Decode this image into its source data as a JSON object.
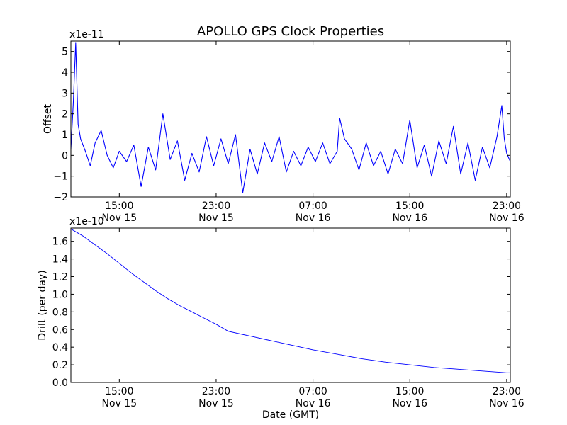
{
  "figure": {
    "title": "APOLLO GPS Clock Properties",
    "xlabel": "Date (GMT)"
  },
  "chart_data": [
    {
      "type": "line",
      "name": "offset",
      "title": "APOLLO GPS Clock Properties",
      "ylabel": "Offset",
      "scale_label": "x1e-11",
      "xlabel": "",
      "x_unit": "hours since Nov 15 11:00 GMT",
      "xlim": [
        0,
        36.3
      ],
      "ylim": [
        -2,
        5.5
      ],
      "yticks": [
        -2,
        -1,
        0,
        1,
        2,
        3,
        4,
        5
      ],
      "xticks": [
        {
          "x": 4,
          "time": "15:00",
          "date": "Nov 15"
        },
        {
          "x": 12,
          "time": "23:00",
          "date": "Nov 15"
        },
        {
          "x": 20,
          "time": "07:00",
          "date": "Nov 16"
        },
        {
          "x": 28,
          "time": "15:00",
          "date": "Nov 16"
        },
        {
          "x": 36,
          "time": "23:00",
          "date": "Nov 16"
        }
      ],
      "color": "#0000ff",
      "grid": false,
      "series": [
        {
          "name": "Offset",
          "x": [
            0,
            0.2,
            0.4,
            0.6,
            0.8,
            1.2,
            1.6,
            2.0,
            2.5,
            3.0,
            3.5,
            4.0,
            4.6,
            5.2,
            5.8,
            6.4,
            7.0,
            7.6,
            8.2,
            8.8,
            9.4,
            10.0,
            10.6,
            11.2,
            11.8,
            12.4,
            13.0,
            13.6,
            14.2,
            14.8,
            15.4,
            16.0,
            16.6,
            17.2,
            17.8,
            18.4,
            19.0,
            19.6,
            20.2,
            20.8,
            21.4,
            22.0,
            22.2,
            22.6,
            23.2,
            23.8,
            24.4,
            25.0,
            25.6,
            26.2,
            26.8,
            27.4,
            28.0,
            28.6,
            29.2,
            29.8,
            30.4,
            31.0,
            31.6,
            32.2,
            32.8,
            33.4,
            34.0,
            34.6,
            35.2,
            35.6,
            35.8,
            36.0,
            36.3
          ],
          "y": [
            0.3,
            2.5,
            5.4,
            1.5,
            0.8,
            0.2,
            -0.5,
            0.6,
            1.2,
            0.0,
            -0.6,
            0.2,
            -0.3,
            0.5,
            -1.5,
            0.4,
            -0.7,
            2.0,
            -0.2,
            0.7,
            -1.2,
            0.1,
            -0.8,
            0.9,
            -0.5,
            0.8,
            -0.4,
            1.0,
            -1.8,
            0.3,
            -0.9,
            0.6,
            -0.3,
            0.9,
            -0.8,
            0.2,
            -0.5,
            0.4,
            -0.3,
            0.6,
            -0.4,
            0.2,
            1.8,
            0.8,
            0.3,
            -0.7,
            0.6,
            -0.5,
            0.2,
            -0.9,
            0.3,
            -0.4,
            1.7,
            -0.6,
            0.5,
            -1.0,
            0.7,
            -0.4,
            1.4,
            -0.9,
            0.6,
            -1.2,
            0.4,
            -0.6,
            0.9,
            2.4,
            0.8,
            0.1,
            -0.3
          ]
        }
      ]
    },
    {
      "type": "line",
      "name": "drift",
      "title": "",
      "ylabel": "Drift (per day)",
      "scale_label": "x1e-10",
      "xlabel": "Date (GMT)",
      "x_unit": "hours since Nov 15 11:00 GMT",
      "xlim": [
        0,
        36.3
      ],
      "ylim": [
        0.0,
        1.75
      ],
      "yticks": [
        0.0,
        0.2,
        0.4,
        0.6,
        0.8,
        1.0,
        1.2,
        1.4,
        1.6
      ],
      "xticks": [
        {
          "x": 4,
          "time": "15:00",
          "date": "Nov 15"
        },
        {
          "x": 12,
          "time": "23:00",
          "date": "Nov 15"
        },
        {
          "x": 20,
          "time": "07:00",
          "date": "Nov 16"
        },
        {
          "x": 28,
          "time": "15:00",
          "date": "Nov 16"
        },
        {
          "x": 36,
          "time": "23:00",
          "date": "Nov 16"
        }
      ],
      "color": "#0000ff",
      "grid": false,
      "series": [
        {
          "name": "Drift",
          "x": [
            0,
            1,
            2,
            3,
            4,
            5,
            6,
            7,
            8,
            9,
            10,
            11,
            12,
            13,
            14,
            15,
            16,
            18,
            20,
            22,
            24,
            26,
            28,
            30,
            32,
            34,
            35,
            36,
            36.3
          ],
          "y": [
            1.74,
            1.66,
            1.56,
            1.46,
            1.35,
            1.24,
            1.14,
            1.04,
            0.95,
            0.87,
            0.8,
            0.73,
            0.66,
            0.58,
            0.55,
            0.52,
            0.49,
            0.43,
            0.37,
            0.32,
            0.27,
            0.23,
            0.2,
            0.17,
            0.15,
            0.13,
            0.12,
            0.11,
            0.11
          ]
        }
      ]
    }
  ]
}
